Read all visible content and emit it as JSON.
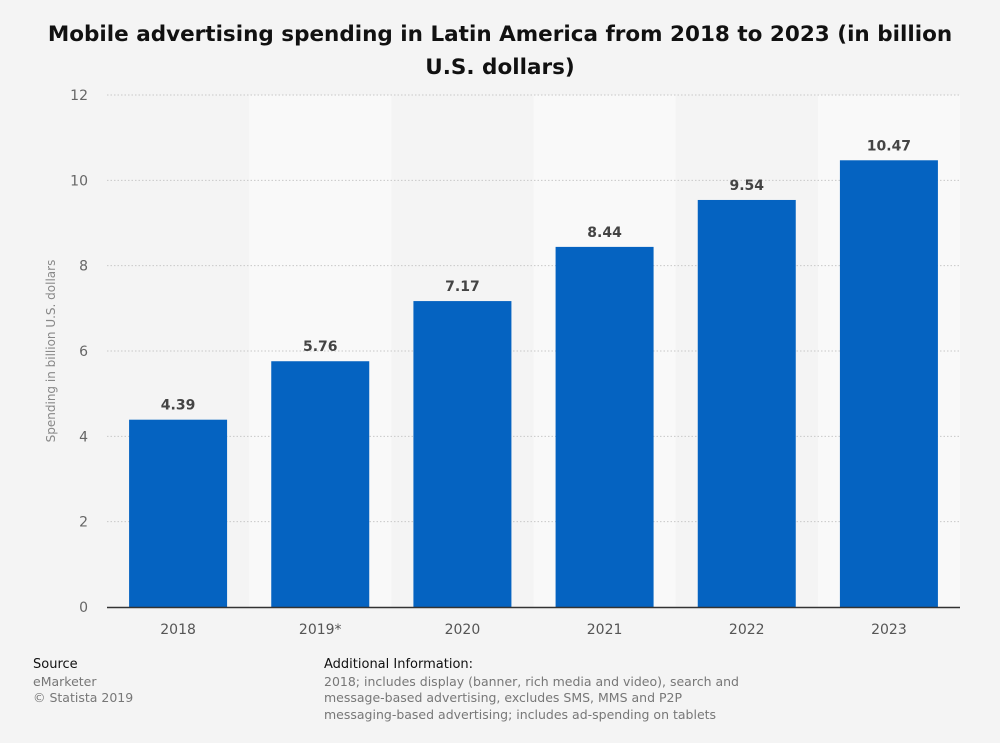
{
  "chart_data": {
    "type": "bar",
    "title": "Mobile advertising spending in Latin America from 2018 to 2023 (in billion U.S. dollars)",
    "categories": [
      "2018",
      "2019*",
      "2020",
      "2021",
      "2022",
      "2023"
    ],
    "values": [
      4.39,
      5.76,
      7.17,
      8.44,
      9.54,
      10.47
    ],
    "value_labels": [
      "4.39",
      "5.76",
      "7.17",
      "8.44",
      "9.54",
      "10.47"
    ],
    "xlabel": "",
    "ylabel": "Spending in billion U.S. dollars",
    "ylim": [
      0,
      12
    ],
    "yticks": [
      0,
      2,
      4,
      6,
      8,
      10,
      12
    ],
    "grid": true,
    "legend": "none",
    "bar_color": "#0563c1"
  },
  "footer": {
    "source_heading": "Source",
    "source_lines": [
      "eMarketer",
      "© Statista 2019"
    ],
    "info_heading": "Additional Information:",
    "info_lines": [
      "2018; includes display (banner, rich media and video), search and",
      "message-based advertising, excludes SMS, MMS and P2P",
      "messaging-based advertising; includes ad-spending on tablets"
    ]
  }
}
